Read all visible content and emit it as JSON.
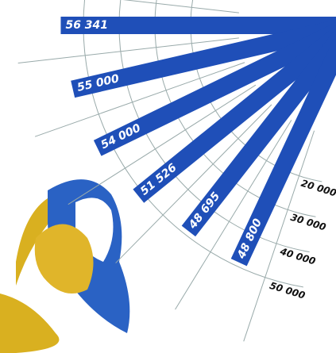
{
  "chart_data": {
    "type": "radial-bar",
    "categories": [
      null,
      null,
      null,
      null,
      null,
      null
    ],
    "values": [
      56341,
      55000,
      54000,
      51526,
      48695,
      48800
    ],
    "value_labels": [
      "56 341",
      "55 000",
      "54 000",
      "51 526",
      "48 695",
      "48 800"
    ],
    "color": "#1f4fb8",
    "ylim": [
      20000,
      60000
    ],
    "yticks": [
      {
        "value": 20000,
        "label": "20 000"
      },
      {
        "value": 30000,
        "label": "30 000"
      },
      {
        "value": 40000,
        "label": "40 000"
      },
      {
        "value": 50000,
        "label": "50 000"
      }
    ],
    "grid": true
  }
}
